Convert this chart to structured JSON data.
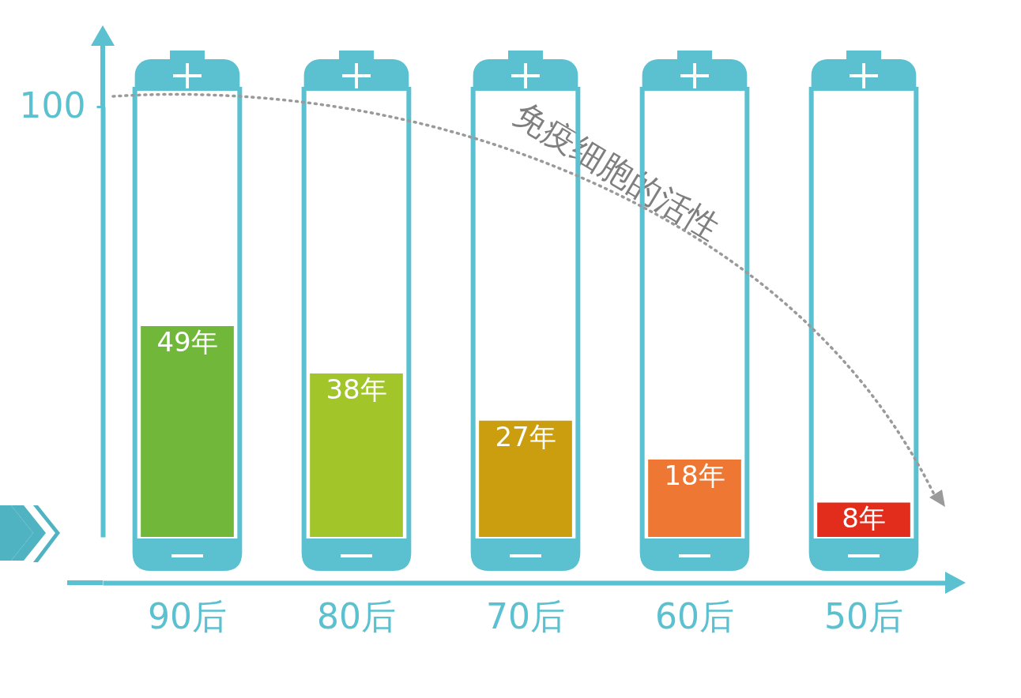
{
  "chart_data": {
    "type": "bar",
    "categories": [
      "90后",
      "80后",
      "70后",
      "60后",
      "50后"
    ],
    "values": [
      49,
      38,
      27,
      18,
      8
    ],
    "colors": [
      "#70b73a",
      "#a2c62a",
      "#cb9e10",
      "#ee7733",
      "#e22d1c"
    ],
    "value_labels": [
      "49年",
      "38年",
      "27年",
      "18年",
      "8年"
    ],
    "ylim": [
      0,
      100
    ],
    "yticks": [
      100
    ],
    "annotations": [
      "免疫细胞的活性"
    ]
  }
}
